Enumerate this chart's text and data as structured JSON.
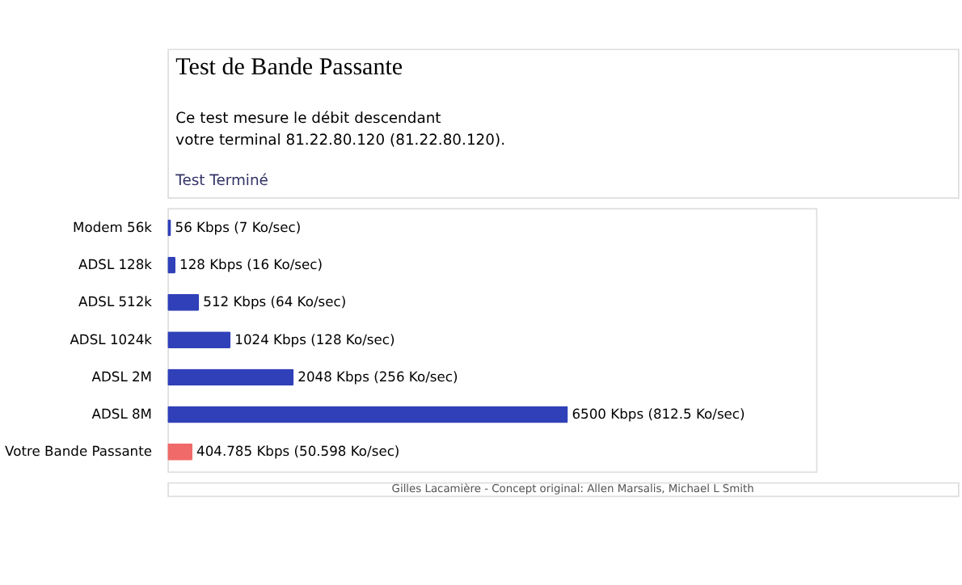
{
  "chart_data": {
    "type": "bar",
    "orientation": "horizontal",
    "title": "Test de Bande Passante",
    "subtitle": [
      "Ce test mesure le débit descendant",
      "votre terminal 81.22.80.120 (81.22.80.120)."
    ],
    "annotations": [
      "Test Terminé",
      "Gilles Lacamière - Concept original: Allen Marsalis, Michael L Smith"
    ],
    "categories": [
      "Modem 56k",
      "ADSL 128k",
      "ADSL 512k",
      "ADSL 1024k",
      "ADSL 2M",
      "ADSL 8M",
      "Votre Bande Passante"
    ],
    "values": [
      56,
      128,
      512,
      1024,
      2048,
      6500,
      404.785
    ],
    "colors": [
      "#3040b8",
      "#3040b8",
      "#3040b8",
      "#3040b8",
      "#3040b8",
      "#3040b8",
      "#f06a6a"
    ],
    "value_labels": [
      "56 Kbps (7 Ko/sec)",
      "128 Kbps (16 Ko/sec)",
      "512 Kbps (64 Ko/sec)",
      "1024 Kbps (128 Ko/sec)",
      "2048 Kbps (256 Ko/sec)",
      "6500 Kbps (812.5 Ko/sec)",
      "404.785 Kbps (50.598 Ko/sec)"
    ],
    "grid": false,
    "legend": false
  }
}
